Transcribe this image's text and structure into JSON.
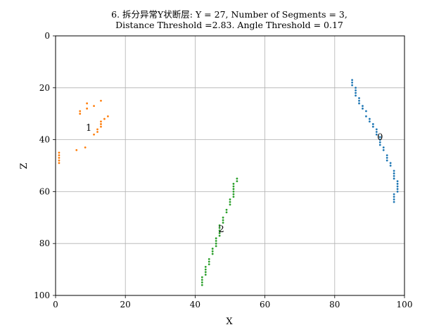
{
  "chart_data": {
    "type": "scatter",
    "title_lines": [
      "6. 拆分异常Y状断层: Y = 27, Number of Segments = 3,",
      "Distance Threshold =2.83. Angle Threshold = 0.17"
    ],
    "xlabel": "X",
    "ylabel": "Z",
    "xlim": [
      0,
      100
    ],
    "ylim": [
      0,
      100
    ],
    "y_inverted": true,
    "grid": true,
    "x_ticks": [
      "0",
      "20",
      "40",
      "60",
      "80",
      "100"
    ],
    "y_ticks": [
      "0",
      "20",
      "40",
      "60",
      "80",
      "100"
    ],
    "series": [
      {
        "color": "#1f77b4",
        "label": "0",
        "label_pos": [
          93,
          39
        ],
        "points": [
          [
            85,
            17
          ],
          [
            85,
            18
          ],
          [
            85,
            19
          ],
          [
            86,
            20
          ],
          [
            86,
            21
          ],
          [
            86,
            22
          ],
          [
            86,
            23
          ],
          [
            87,
            24
          ],
          [
            87,
            25
          ],
          [
            87,
            26
          ],
          [
            88,
            27
          ],
          [
            88,
            28
          ],
          [
            89,
            29
          ],
          [
            89,
            31
          ],
          [
            90,
            32
          ],
          [
            90,
            33
          ],
          [
            91,
            34
          ],
          [
            91,
            35
          ],
          [
            92,
            36
          ],
          [
            92,
            37
          ],
          [
            92,
            38
          ],
          [
            93,
            39
          ],
          [
            93,
            40
          ],
          [
            93,
            41
          ],
          [
            93,
            42
          ],
          [
            94,
            43
          ],
          [
            94,
            44
          ],
          [
            95,
            46
          ],
          [
            95,
            47
          ],
          [
            95,
            48
          ],
          [
            96,
            49
          ],
          [
            96,
            50
          ],
          [
            97,
            52
          ],
          [
            97,
            53
          ],
          [
            97,
            54
          ],
          [
            97,
            55
          ],
          [
            98,
            56
          ],
          [
            98,
            57
          ],
          [
            98,
            58
          ],
          [
            98,
            59
          ],
          [
            98,
            60
          ],
          [
            97,
            61
          ],
          [
            97,
            62
          ],
          [
            97,
            63
          ],
          [
            97,
            64
          ]
        ]
      },
      {
        "color": "#ff7f0e",
        "label": "1",
        "label_pos": [
          9.5,
          35.5
        ],
        "points": [
          [
            13,
            25
          ],
          [
            9,
            26
          ],
          [
            11,
            27
          ],
          [
            9,
            28
          ],
          [
            7,
            29
          ],
          [
            7,
            30
          ],
          [
            15,
            31
          ],
          [
            14,
            32
          ],
          [
            13,
            33
          ],
          [
            13,
            34
          ],
          [
            13,
            35
          ],
          [
            12,
            36
          ],
          [
            12,
            37
          ],
          [
            11,
            38
          ],
          [
            8.5,
            43
          ],
          [
            6,
            44
          ],
          [
            1,
            45
          ],
          [
            1,
            46
          ],
          [
            1,
            47
          ],
          [
            1,
            48
          ],
          [
            1,
            49
          ]
        ]
      },
      {
        "color": "#2ca02c",
        "label": "2",
        "label_pos": [
          47.5,
          74.5
        ],
        "points": [
          [
            52,
            55
          ],
          [
            52,
            56
          ],
          [
            51,
            57
          ],
          [
            51,
            58
          ],
          [
            51,
            59
          ],
          [
            51,
            60
          ],
          [
            51,
            61
          ],
          [
            51,
            62
          ],
          [
            50,
            63
          ],
          [
            50,
            64
          ],
          [
            50,
            65
          ],
          [
            49,
            67
          ],
          [
            49,
            68
          ],
          [
            48,
            70
          ],
          [
            48,
            71
          ],
          [
            48,
            72
          ],
          [
            47,
            73
          ],
          [
            47,
            74
          ],
          [
            47,
            75
          ],
          [
            47,
            76
          ],
          [
            47,
            77
          ],
          [
            46,
            78
          ],
          [
            46,
            79
          ],
          [
            46,
            80
          ],
          [
            46,
            81
          ],
          [
            45,
            82
          ],
          [
            45,
            83
          ],
          [
            45,
            84
          ],
          [
            44,
            86
          ],
          [
            44,
            87
          ],
          [
            44,
            88
          ],
          [
            43,
            89
          ],
          [
            43,
            90
          ],
          [
            43,
            91
          ],
          [
            43,
            92
          ],
          [
            42,
            93
          ],
          [
            42,
            94
          ],
          [
            42,
            95
          ],
          [
            42,
            96
          ]
        ]
      }
    ]
  }
}
